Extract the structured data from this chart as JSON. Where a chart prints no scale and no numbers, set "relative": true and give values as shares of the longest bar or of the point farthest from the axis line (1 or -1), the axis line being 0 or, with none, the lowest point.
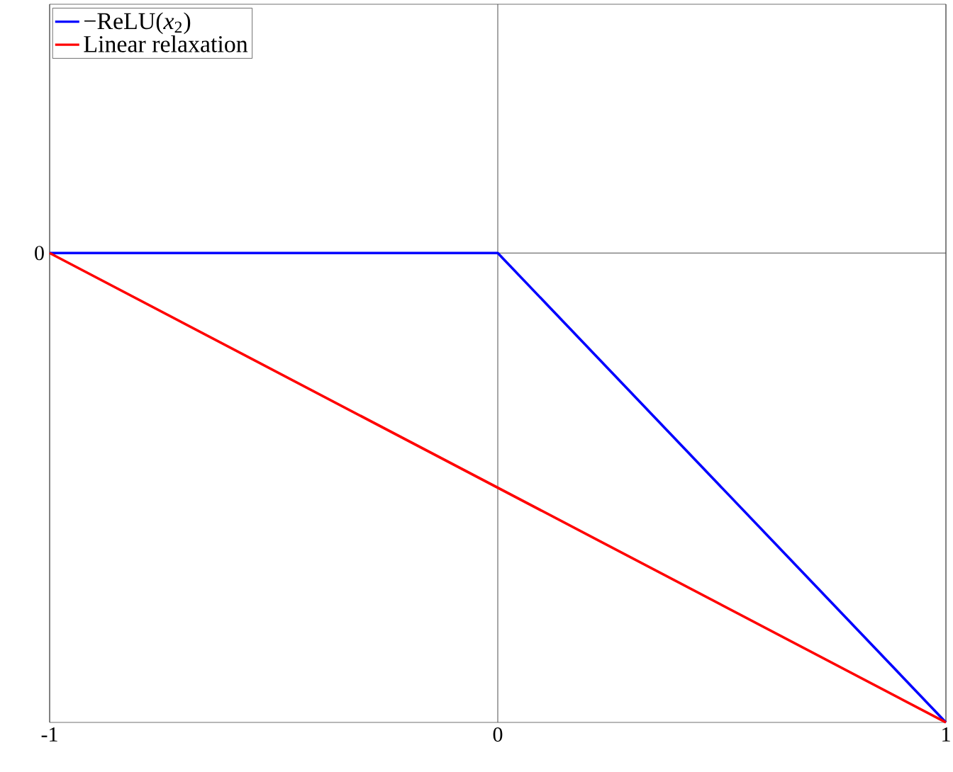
{
  "chart_data": {
    "type": "line",
    "relative": true,
    "x": [
      -1,
      0,
      1
    ],
    "series": [
      {
        "name": "−ReLU(*x*$_{2}$)",
        "color": "#0000ff",
        "values": [
          0,
          0,
          -1
        ]
      },
      {
        "name": "Linear relaxation",
        "color": "#ff0000",
        "x": [
          -1,
          1
        ],
        "values": [
          0,
          -1
        ]
      }
    ],
    "xlim": [
      -1,
      1
    ],
    "xticks": [
      -1,
      0,
      1
    ],
    "annotations": [
      {
        "text": "0",
        "x": -1,
        "y": 0
      }
    ],
    "legend": "top left",
    "marker": "none",
    "line_style": "solid",
    "grid": "x"
  }
}
